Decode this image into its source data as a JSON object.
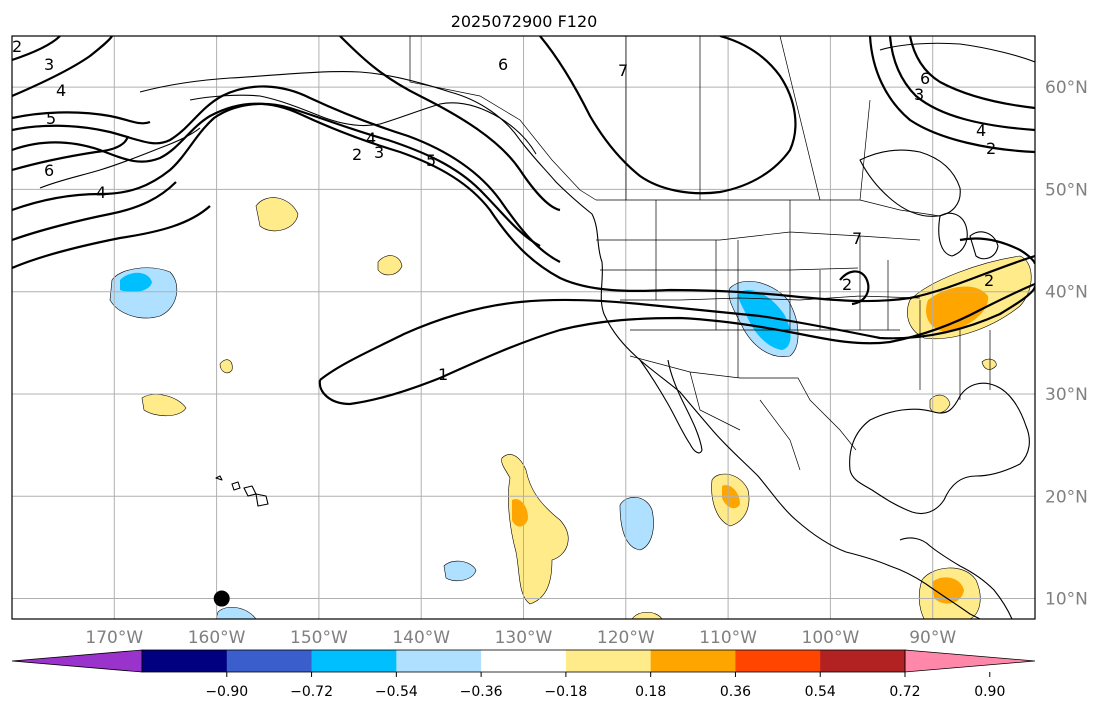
{
  "title": "2025072900 F120",
  "map": {
    "lon_range": [
      -180,
      -80
    ],
    "lat_range": [
      8,
      65
    ],
    "lat_labels": [
      "60°N",
      "50°N",
      "40°N",
      "30°N",
      "20°N",
      "10°N"
    ],
    "lon_labels": [
      "170°W",
      "160°W",
      "150°W",
      "140°W",
      "130°W",
      "120°W",
      "110°W",
      "100°W",
      "90°W"
    ],
    "gridlines": true,
    "contour_color": "#000000"
  },
  "contours": [
    {
      "label": "1"
    },
    {
      "label": "2"
    },
    {
      "label": "3"
    },
    {
      "label": "4"
    },
    {
      "label": "5"
    },
    {
      "label": "6"
    },
    {
      "label": "7"
    }
  ],
  "colorbar": {
    "ticks": [
      "−0.90",
      "−0.72",
      "−0.54",
      "−0.36",
      "−0.18",
      "0.18",
      "0.36",
      "0.54",
      "0.72",
      "0.90"
    ],
    "colors": [
      "#9933cc",
      "#000080",
      "#3a5fcd",
      "#00bfff",
      "#b0e0ff",
      "#ffffff",
      "#ffeb8a",
      "#ffa500",
      "#ff4500",
      "#b22222",
      "#ff88aa"
    ],
    "extend": "both"
  },
  "marker": {
    "lon": -159.5,
    "lat": 10,
    "color": "#000000"
  }
}
